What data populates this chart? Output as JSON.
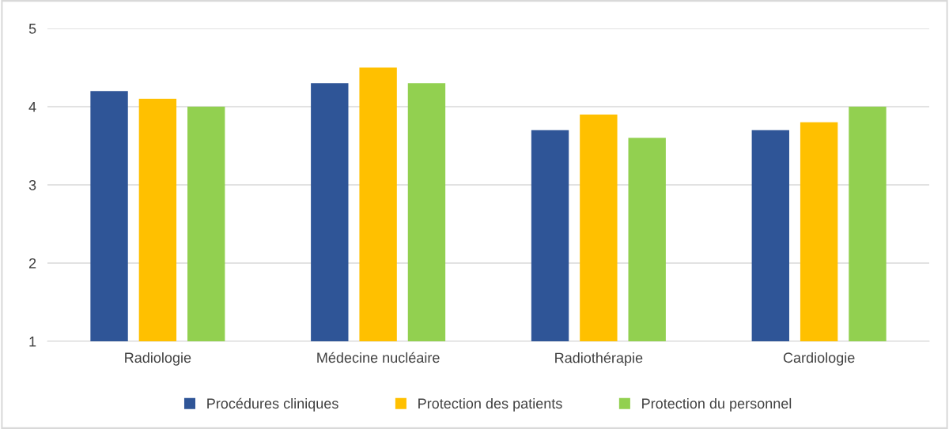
{
  "chart_data": {
    "type": "bar",
    "categories": [
      "Radiologie",
      "Médecine nucléaire",
      "Radiothérapie",
      "Cardiologie"
    ],
    "series": [
      {
        "name": "Procédures cliniques",
        "color": "#2f5597",
        "values": [
          4.2,
          4.3,
          3.7,
          3.7
        ]
      },
      {
        "name": "Protection des patients",
        "color": "#ffc000",
        "values": [
          4.1,
          4.5,
          3.9,
          3.8
        ]
      },
      {
        "name": "Protection du personnel",
        "color": "#92d050",
        "values": [
          4.0,
          4.3,
          3.6,
          4.0
        ]
      }
    ],
    "ylim": [
      1,
      5
    ],
    "yticks": [
      1,
      2,
      3,
      4,
      5
    ],
    "grid": "y",
    "legend": "bottom"
  }
}
